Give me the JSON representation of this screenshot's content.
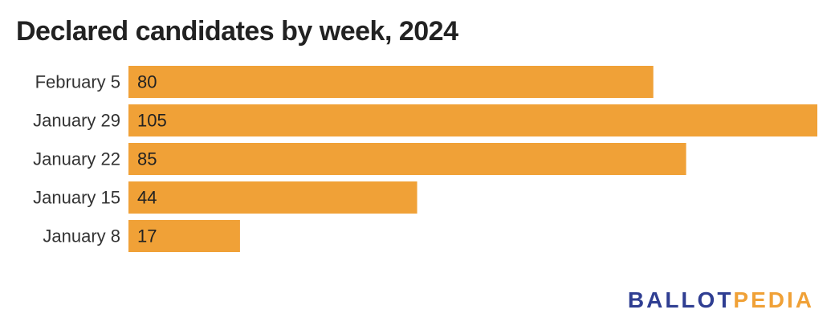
{
  "chart_data": {
    "type": "bar",
    "orientation": "horizontal",
    "title": "Declared candidates by week, 2024",
    "categories": [
      "February 5",
      "January 29",
      "January 22",
      "January 15",
      "January 8"
    ],
    "values": [
      80,
      105,
      85,
      44,
      17
    ],
    "xlabel": "",
    "ylabel": "",
    "xlim": [
      0,
      105
    ],
    "grid": false,
    "legend": "none",
    "bar_color": "#f0a137"
  },
  "branding": {
    "logo_part_a": "BALLOT",
    "logo_part_b": "PEDIA",
    "logo_color_a": "#2f3e92",
    "logo_color_b": "#f0a137"
  }
}
